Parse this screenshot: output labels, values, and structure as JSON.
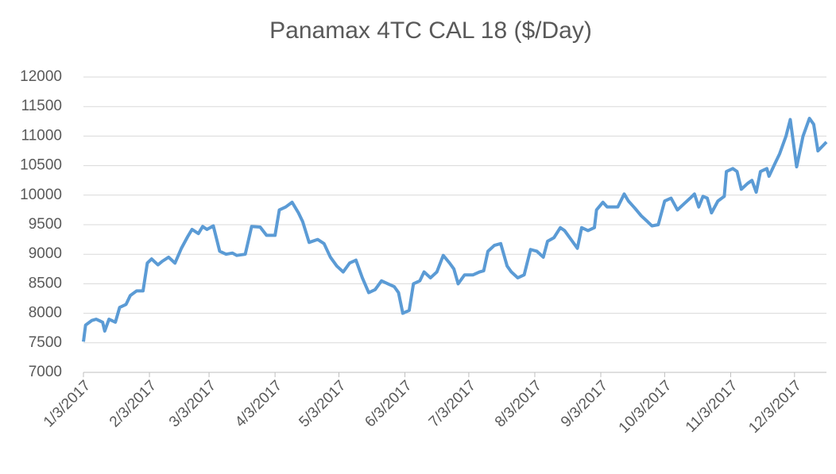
{
  "chart_data": {
    "type": "line",
    "title": "Panamax 4TC CAL 18 ($/Day)",
    "x": [
      "2017-01-03",
      "2017-01-04",
      "2017-01-07",
      "2017-01-09",
      "2017-01-12",
      "2017-01-13",
      "2017-01-15",
      "2017-01-18",
      "2017-01-20",
      "2017-01-23",
      "2017-01-25",
      "2017-01-28",
      "2017-01-31",
      "2017-02-02",
      "2017-02-04",
      "2017-02-07",
      "2017-02-09",
      "2017-02-12",
      "2017-02-15",
      "2017-02-18",
      "2017-02-21",
      "2017-02-23",
      "2017-02-26",
      "2017-02-28",
      "2017-03-02",
      "2017-03-05",
      "2017-03-08",
      "2017-03-11",
      "2017-03-14",
      "2017-03-16",
      "2017-03-20",
      "2017-03-23",
      "2017-03-27",
      "2017-03-30",
      "2017-04-03",
      "2017-04-05",
      "2017-04-08",
      "2017-04-11",
      "2017-04-14",
      "2017-04-16",
      "2017-04-19",
      "2017-04-23",
      "2017-04-26",
      "2017-04-29",
      "2017-05-02",
      "2017-05-05",
      "2017-05-08",
      "2017-05-11",
      "2017-05-14",
      "2017-05-17",
      "2017-05-20",
      "2017-05-23",
      "2017-05-26",
      "2017-05-29",
      "2017-05-31",
      "2017-06-02",
      "2017-06-05",
      "2017-06-07",
      "2017-06-10",
      "2017-06-12",
      "2017-06-15",
      "2017-06-18",
      "2017-06-21",
      "2017-06-24",
      "2017-06-26",
      "2017-06-28",
      "2017-07-01",
      "2017-07-05",
      "2017-07-08",
      "2017-07-10",
      "2017-07-12",
      "2017-07-15",
      "2017-07-18",
      "2017-07-21",
      "2017-07-23",
      "2017-07-26",
      "2017-07-29",
      "2017-08-01",
      "2017-08-04",
      "2017-08-07",
      "2017-08-09",
      "2017-08-12",
      "2017-08-15",
      "2017-08-17",
      "2017-08-20",
      "2017-08-23",
      "2017-08-25",
      "2017-08-28",
      "2017-08-31",
      "2017-09-01",
      "2017-09-04",
      "2017-09-06",
      "2017-09-08",
      "2017-09-11",
      "2017-09-14",
      "2017-09-16",
      "2017-09-19",
      "2017-09-22",
      "2017-09-25",
      "2017-09-27",
      "2017-09-30",
      "2017-10-03",
      "2017-10-06",
      "2017-10-09",
      "2017-10-12",
      "2017-10-15",
      "2017-10-17",
      "2017-10-19",
      "2017-10-21",
      "2017-10-23",
      "2017-10-25",
      "2017-10-28",
      "2017-10-31",
      "2017-11-01",
      "2017-11-04",
      "2017-11-06",
      "2017-11-08",
      "2017-11-11",
      "2017-11-13",
      "2017-11-15",
      "2017-11-17",
      "2017-11-20",
      "2017-11-21",
      "2017-11-24",
      "2017-11-26",
      "2017-11-29",
      "2017-12-01",
      "2017-12-04",
      "2017-12-07",
      "2017-12-10",
      "2017-12-12",
      "2017-12-14",
      "2017-12-18"
    ],
    "series": [
      {
        "name": "Panamax 4TC CAL 18",
        "color": "#5b9bd5",
        "values": [
          7520,
          7800,
          7880,
          7900,
          7850,
          7700,
          7900,
          7850,
          8100,
          8150,
          8300,
          8380,
          8380,
          8850,
          8920,
          8820,
          8880,
          8950,
          8850,
          9100,
          9300,
          9420,
          9350,
          9470,
          9420,
          9480,
          9050,
          9000,
          9020,
          8980,
          9000,
          9470,
          9460,
          9320,
          9320,
          9750,
          9800,
          9880,
          9700,
          9550,
          9200,
          9250,
          9180,
          8950,
          8800,
          8700,
          8850,
          8900,
          8600,
          8350,
          8400,
          8550,
          8500,
          8450,
          8350,
          8000,
          8050,
          8500,
          8550,
          8700,
          8600,
          8700,
          8980,
          8850,
          8750,
          8500,
          8650,
          8650,
          8700,
          8720,
          9050,
          9150,
          9180,
          8800,
          8700,
          8600,
          8650,
          9080,
          9050,
          8950,
          9220,
          9280,
          9450,
          9400,
          9250,
          9100,
          9450,
          9400,
          9450,
          9750,
          9880,
          9800,
          9800,
          9800,
          10020,
          9900,
          9780,
          9650,
          9550,
          9480,
          9500,
          9900,
          9950,
          9750,
          9850,
          9950,
          10020,
          9800,
          9980,
          9950,
          9700,
          9900,
          9980,
          10400,
          10450,
          10400,
          10100,
          10200,
          10250,
          10050,
          10400,
          10450,
          10320,
          10550,
          10700,
          11000,
          11280,
          10480,
          11000,
          11300,
          11200,
          10750,
          10900
        ]
      }
    ],
    "xlim": [
      "2017-01-03",
      "2017-12-18"
    ],
    "xticks": [
      {
        "value": "2017-01-03",
        "label": "1/3/2017"
      },
      {
        "value": "2017-02-03",
        "label": "2/3/2017"
      },
      {
        "value": "2017-03-03",
        "label": "3/3/2017"
      },
      {
        "value": "2017-04-03",
        "label": "4/3/2017"
      },
      {
        "value": "2017-05-03",
        "label": "5/3/2017"
      },
      {
        "value": "2017-06-03",
        "label": "6/3/2017"
      },
      {
        "value": "2017-07-03",
        "label": "7/3/2017"
      },
      {
        "value": "2017-08-03",
        "label": "8/3/2017"
      },
      {
        "value": "2017-09-03",
        "label": "9/3/2017"
      },
      {
        "value": "2017-10-03",
        "label": "10/3/2017"
      },
      {
        "value": "2017-11-03",
        "label": "11/3/2017"
      },
      {
        "value": "2017-12-03",
        "label": "12/3/2017"
      }
    ],
    "ylim": [
      7000,
      12000
    ],
    "yticks": [
      7000,
      7500,
      8000,
      8500,
      9000,
      9500,
      10000,
      10500,
      11000,
      11500,
      12000
    ],
    "grid": true
  }
}
